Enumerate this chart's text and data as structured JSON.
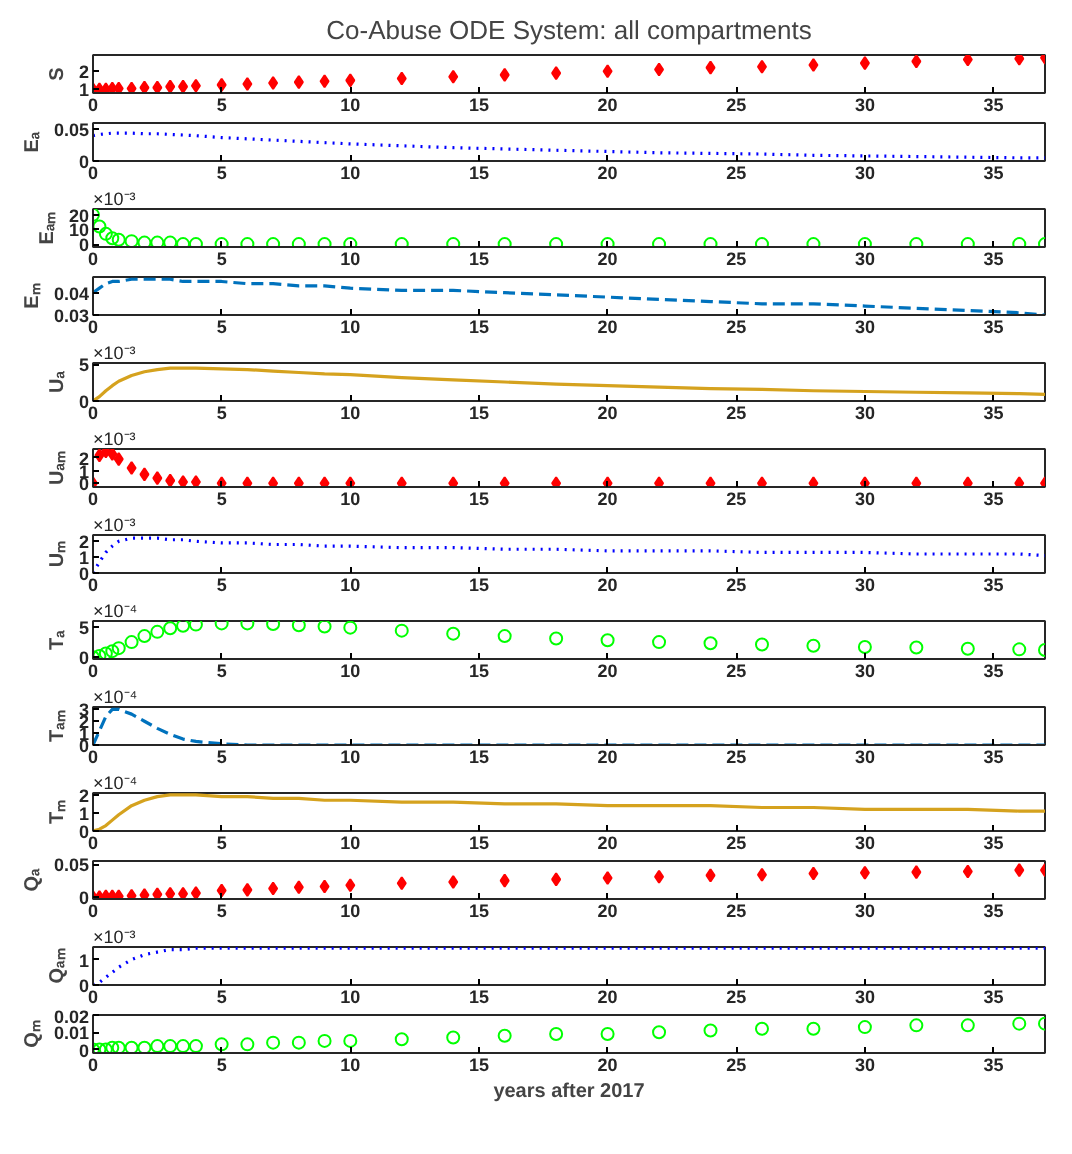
{
  "chart_data": [
    {
      "type": "scatter",
      "title": "Co-Abuse ODE System: all compartments",
      "ylabel": "S",
      "marker": "diamond",
      "color": "#ff0000",
      "xlim": [
        0,
        37
      ],
      "xticks": [
        0,
        5,
        10,
        15,
        20,
        25,
        30,
        35
      ],
      "ylim": [
        0.8,
        2.9
      ],
      "yticks": [
        1,
        2
      ],
      "x": [
        0,
        0.25,
        0.5,
        0.75,
        1,
        1.5,
        2,
        2.5,
        3,
        3.5,
        4,
        5,
        6,
        7,
        8,
        9,
        10,
        12,
        14,
        16,
        18,
        20,
        22,
        24,
        26,
        28,
        30,
        32,
        34,
        36,
        37
      ],
      "values": [
        1,
        1,
        1,
        1.05,
        1.05,
        1.05,
        1.1,
        1.1,
        1.15,
        1.15,
        1.2,
        1.25,
        1.3,
        1.35,
        1.4,
        1.45,
        1.5,
        1.6,
        1.7,
        1.8,
        1.9,
        2,
        2.1,
        2.2,
        2.25,
        2.35,
        2.45,
        2.55,
        2.65,
        2.7,
        2.75
      ]
    },
    {
      "type": "line",
      "ylabel": "Eₐ",
      "line_style": "dotted",
      "color": "#0000ff",
      "xlim": [
        0,
        37
      ],
      "xticks": [
        0,
        5,
        10,
        15,
        20,
        25,
        30,
        35
      ],
      "ylim": [
        0,
        0.06
      ],
      "yticks": [
        0,
        0.05
      ],
      "x": [
        0,
        0.25,
        0.5,
        0.75,
        1,
        1.5,
        2,
        2.5,
        3,
        3.5,
        4,
        5,
        6,
        7,
        8,
        9,
        10,
        12,
        14,
        16,
        18,
        20,
        22,
        24,
        26,
        28,
        30,
        32,
        34,
        36,
        37
      ],
      "values": [
        0.04,
        0.042,
        0.043,
        0.044,
        0.044,
        0.044,
        0.043,
        0.043,
        0.042,
        0.041,
        0.04,
        0.037,
        0.035,
        0.033,
        0.031,
        0.029,
        0.027,
        0.024,
        0.021,
        0.019,
        0.017,
        0.015,
        0.013,
        0.012,
        0.011,
        0.009,
        0.008,
        0.007,
        0.006,
        0.005,
        0.005
      ]
    },
    {
      "type": "scatter",
      "ylabel": "Eₐₘ",
      "marker": "circle",
      "color": "#00ff00",
      "annotations": [
        "×10⁻³"
      ],
      "xlim": [
        0,
        37
      ],
      "xticks": [
        0,
        5,
        10,
        15,
        20,
        25,
        30,
        35
      ],
      "ylim": [
        -2,
        24
      ],
      "yticks": [
        0,
        10,
        20
      ],
      "x": [
        0,
        0.25,
        0.5,
        0.75,
        1,
        1.5,
        2,
        2.5,
        3,
        3.5,
        4,
        5,
        6,
        7,
        8,
        9,
        10,
        12,
        14,
        16,
        18,
        20,
        22,
        24,
        26,
        28,
        30,
        32,
        34,
        36,
        37
      ],
      "values": [
        20,
        12,
        7,
        4,
        3,
        2,
        1,
        1,
        1,
        0,
        0,
        0,
        0,
        0,
        0,
        0,
        0,
        0,
        0,
        0,
        0,
        0,
        0,
        0,
        0,
        0,
        0,
        0,
        0,
        0,
        0
      ]
    },
    {
      "type": "line",
      "ylabel": "Eₘ",
      "line_style": "dashed",
      "color": "#0072bd",
      "xlim": [
        0,
        37
      ],
      "xticks": [
        0,
        5,
        10,
        15,
        20,
        25,
        30,
        35
      ],
      "ylim": [
        0.03,
        0.047
      ],
      "yticks": [
        0.03,
        0.04
      ],
      "x": [
        0,
        0.25,
        0.5,
        0.75,
        1,
        1.5,
        2,
        2.5,
        3,
        3.5,
        4,
        5,
        6,
        7,
        8,
        9,
        10,
        12,
        14,
        16,
        18,
        20,
        22,
        24,
        26,
        28,
        30,
        32,
        34,
        36,
        37
      ],
      "values": [
        0.04,
        0.042,
        0.044,
        0.045,
        0.045,
        0.046,
        0.046,
        0.046,
        0.046,
        0.045,
        0.045,
        0.045,
        0.044,
        0.044,
        0.043,
        0.043,
        0.042,
        0.041,
        0.041,
        0.04,
        0.039,
        0.038,
        0.037,
        0.036,
        0.035,
        0.035,
        0.034,
        0.033,
        0.032,
        0.031,
        0.03
      ]
    },
    {
      "type": "line",
      "ylabel": "Uₐ",
      "line_style": "solid",
      "color": "#d5a21e",
      "annotations": [
        "×10⁻³"
      ],
      "xlim": [
        0,
        37
      ],
      "xticks": [
        0,
        5,
        10,
        15,
        20,
        25,
        30,
        35
      ],
      "ylim": [
        0,
        5.2
      ],
      "yticks": [
        0,
        5
      ],
      "x": [
        0,
        0.25,
        0.5,
        0.75,
        1,
        1.5,
        2,
        2.5,
        3,
        3.5,
        4,
        5,
        6,
        7,
        8,
        9,
        10,
        12,
        14,
        16,
        18,
        20,
        22,
        24,
        26,
        28,
        30,
        32,
        34,
        36,
        37
      ],
      "values": [
        0,
        0.6,
        1.4,
        2.1,
        2.7,
        3.5,
        4,
        4.3,
        4.5,
        4.5,
        4.5,
        4.4,
        4.3,
        4.1,
        3.9,
        3.7,
        3.6,
        3.2,
        2.9,
        2.6,
        2.3,
        2.1,
        1.9,
        1.7,
        1.6,
        1.4,
        1.3,
        1.2,
        1.1,
        1,
        0.9
      ]
    },
    {
      "type": "scatter",
      "ylabel": "Uₐₘ",
      "marker": "diamond",
      "color": "#ff0000",
      "annotations": [
        "×10⁻³"
      ],
      "xlim": [
        0,
        37
      ],
      "xticks": [
        0,
        5,
        10,
        15,
        20,
        25,
        30,
        35
      ],
      "ylim": [
        -0.3,
        2.7
      ],
      "yticks": [
        0,
        1,
        2
      ],
      "x": [
        0,
        0.25,
        0.5,
        0.75,
        1,
        1.5,
        2,
        2.5,
        3,
        3.5,
        4,
        5,
        6,
        7,
        8,
        9,
        10,
        12,
        14,
        16,
        18,
        20,
        22,
        24,
        26,
        28,
        30,
        32,
        34,
        36,
        37
      ],
      "values": [
        0,
        2.2,
        2.5,
        2.3,
        1.9,
        1.2,
        0.7,
        0.4,
        0.2,
        0.1,
        0.1,
        0,
        0,
        0,
        0,
        0,
        0,
        0,
        0,
        0,
        0,
        0,
        0,
        0,
        0,
        0,
        0,
        0,
        0,
        0,
        0
      ]
    },
    {
      "type": "line",
      "ylabel": "Uₘ",
      "line_style": "dotted",
      "color": "#0000ff",
      "annotations": [
        "×10⁻³"
      ],
      "xlim": [
        0,
        37
      ],
      "xticks": [
        0,
        5,
        10,
        15,
        20,
        25,
        30,
        35
      ],
      "ylim": [
        0,
        2.4
      ],
      "yticks": [
        0,
        1,
        2
      ],
      "x": [
        0,
        0.25,
        0.5,
        0.75,
        1,
        1.5,
        2,
        2.5,
        3,
        3.5,
        4,
        5,
        6,
        7,
        8,
        9,
        10,
        12,
        14,
        16,
        18,
        20,
        22,
        24,
        26,
        28,
        30,
        32,
        34,
        36,
        37
      ],
      "values": [
        0,
        0.7,
        1.3,
        1.7,
        2,
        2.2,
        2.2,
        2.2,
        2.1,
        2.1,
        2,
        1.9,
        1.9,
        1.8,
        1.8,
        1.7,
        1.7,
        1.6,
        1.6,
        1.5,
        1.5,
        1.4,
        1.4,
        1.4,
        1.3,
        1.3,
        1.3,
        1.2,
        1.2,
        1.2,
        1.1
      ]
    },
    {
      "type": "scatter",
      "ylabel": "Tₐ",
      "marker": "circle",
      "color": "#00ff00",
      "annotations": [
        "×10⁻⁴"
      ],
      "xlim": [
        0,
        37
      ],
      "xticks": [
        0,
        5,
        10,
        15,
        20,
        25,
        30,
        35
      ],
      "ylim": [
        -0.3,
        6
      ],
      "yticks": [
        0,
        5
      ],
      "x": [
        0,
        0.25,
        0.5,
        0.75,
        1,
        1.5,
        2,
        2.5,
        3,
        3.5,
        4,
        5,
        6,
        7,
        8,
        9,
        10,
        12,
        14,
        16,
        18,
        20,
        22,
        24,
        26,
        28,
        30,
        32,
        34,
        36,
        37
      ],
      "values": [
        0,
        0.2,
        0.6,
        1,
        1.5,
        2.5,
        3.5,
        4.2,
        4.8,
        5.2,
        5.4,
        5.6,
        5.6,
        5.5,
        5.3,
        5.1,
        4.9,
        4.4,
        3.9,
        3.5,
        3.1,
        2.8,
        2.5,
        2.3,
        2.1,
        1.9,
        1.7,
        1.6,
        1.4,
        1.3,
        1.2
      ]
    },
    {
      "type": "line",
      "ylabel": "Tₐₘ",
      "line_style": "dashed",
      "color": "#0072bd",
      "annotations": [
        "×10⁻⁴"
      ],
      "xlim": [
        0,
        37
      ],
      "xticks": [
        0,
        5,
        10,
        15,
        20,
        25,
        30,
        35
      ],
      "ylim": [
        0,
        3.2
      ],
      "yticks": [
        0,
        1,
        2,
        3
      ],
      "x": [
        0,
        0.25,
        0.5,
        0.75,
        1,
        1.5,
        2,
        2.5,
        3,
        3.5,
        4,
        5,
        6,
        7,
        8,
        9,
        10,
        12,
        14,
        16,
        18,
        20,
        22,
        24,
        26,
        28,
        30,
        32,
        34,
        36,
        37
      ],
      "values": [
        0,
        1.2,
        2.4,
        3,
        3,
        2.6,
        2,
        1.4,
        0.9,
        0.5,
        0.3,
        0.1,
        0,
        0,
        0,
        0,
        0,
        0,
        0,
        0,
        0,
        0,
        0,
        0,
        0,
        0,
        0,
        0,
        0,
        0,
        0
      ]
    },
    {
      "type": "line",
      "ylabel": "Tₘ",
      "line_style": "solid",
      "color": "#d5a21e",
      "annotations": [
        "×10⁻⁴"
      ],
      "xlim": [
        0,
        37
      ],
      "xticks": [
        0,
        5,
        10,
        15,
        20,
        25,
        30,
        35
      ],
      "ylim": [
        0,
        2.1
      ],
      "yticks": [
        0,
        1,
        2
      ],
      "x": [
        0,
        0.25,
        0.5,
        0.75,
        1,
        1.5,
        2,
        2.5,
        3,
        3.5,
        4,
        5,
        6,
        7,
        8,
        9,
        10,
        12,
        14,
        16,
        18,
        20,
        22,
        24,
        26,
        28,
        30,
        32,
        34,
        36,
        37
      ],
      "values": [
        0,
        0.1,
        0.3,
        0.6,
        0.9,
        1.4,
        1.7,
        1.9,
        2,
        2,
        2,
        1.9,
        1.9,
        1.8,
        1.8,
        1.7,
        1.7,
        1.6,
        1.6,
        1.5,
        1.5,
        1.4,
        1.4,
        1.4,
        1.3,
        1.3,
        1.2,
        1.2,
        1.2,
        1.1,
        1.1
      ]
    },
    {
      "type": "scatter",
      "ylabel": "Qₐ",
      "marker": "diamond",
      "color": "#ff0000",
      "xlim": [
        0,
        37
      ],
      "xticks": [
        0,
        5,
        10,
        15,
        20,
        25,
        30,
        35
      ],
      "ylim": [
        -0.003,
        0.055
      ],
      "yticks": [
        0,
        0.05
      ],
      "x": [
        0,
        0.25,
        0.5,
        0.75,
        1,
        1.5,
        2,
        2.5,
        3,
        3.5,
        4,
        5,
        6,
        7,
        8,
        9,
        10,
        12,
        14,
        16,
        18,
        20,
        22,
        24,
        26,
        28,
        30,
        32,
        34,
        36,
        37
      ],
      "values": [
        0,
        0,
        0.001,
        0.001,
        0.001,
        0.002,
        0.003,
        0.004,
        0.005,
        0.005,
        0.006,
        0.01,
        0.011,
        0.013,
        0.015,
        0.016,
        0.018,
        0.021,
        0.023,
        0.025,
        0.027,
        0.029,
        0.031,
        0.033,
        0.034,
        0.036,
        0.037,
        0.038,
        0.039,
        0.041,
        0.041
      ]
    },
    {
      "type": "line",
      "ylabel": "Qₐₘ",
      "line_style": "dotted",
      "color": "#0000ff",
      "annotations": [
        "×10⁻³"
      ],
      "xlim": [
        0,
        37
      ],
      "xticks": [
        0,
        5,
        10,
        15,
        20,
        25,
        30,
        35
      ],
      "ylim": [
        0,
        1.5
      ],
      "yticks": [
        0,
        1
      ],
      "x": [
        0,
        0.25,
        0.5,
        0.75,
        1,
        1.5,
        2,
        2.5,
        3,
        3.5,
        4,
        5,
        6,
        7,
        8,
        9,
        10,
        12,
        14,
        16,
        18,
        20,
        22,
        24,
        26,
        28,
        30,
        32,
        34,
        36,
        37
      ],
      "values": [
        0,
        0.1,
        0.3,
        0.5,
        0.7,
        1,
        1.2,
        1.3,
        1.4,
        1.4,
        1.45,
        1.45,
        1.45,
        1.45,
        1.45,
        1.45,
        1.45,
        1.45,
        1.45,
        1.45,
        1.45,
        1.45,
        1.45,
        1.45,
        1.45,
        1.45,
        1.45,
        1.45,
        1.45,
        1.45,
        1.45
      ]
    },
    {
      "type": "scatter",
      "ylabel": "Qₘ",
      "xlabel": "years after 2017",
      "marker": "circle",
      "color": "#00ff00",
      "xlim": [
        0,
        37
      ],
      "xticks": [
        0,
        5,
        10,
        15,
        20,
        25,
        30,
        35
      ],
      "ylim": [
        -0.002,
        0.02
      ],
      "yticks": [
        0,
        0.01,
        0.02
      ],
      "x": [
        0,
        0.25,
        0.5,
        0.75,
        1,
        1.5,
        2,
        2.5,
        3,
        3.5,
        4,
        5,
        6,
        7,
        8,
        9,
        10,
        12,
        14,
        16,
        18,
        20,
        22,
        24,
        26,
        28,
        30,
        32,
        34,
        36,
        37
      ],
      "values": [
        0,
        0,
        0,
        0.001,
        0.001,
        0.001,
        0.001,
        0.002,
        0.002,
        0.002,
        0.002,
        0.003,
        0.003,
        0.004,
        0.004,
        0.005,
        0.005,
        0.006,
        0.007,
        0.008,
        0.009,
        0.009,
        0.01,
        0.011,
        0.012,
        0.012,
        0.013,
        0.014,
        0.014,
        0.015,
        0.015
      ]
    }
  ]
}
